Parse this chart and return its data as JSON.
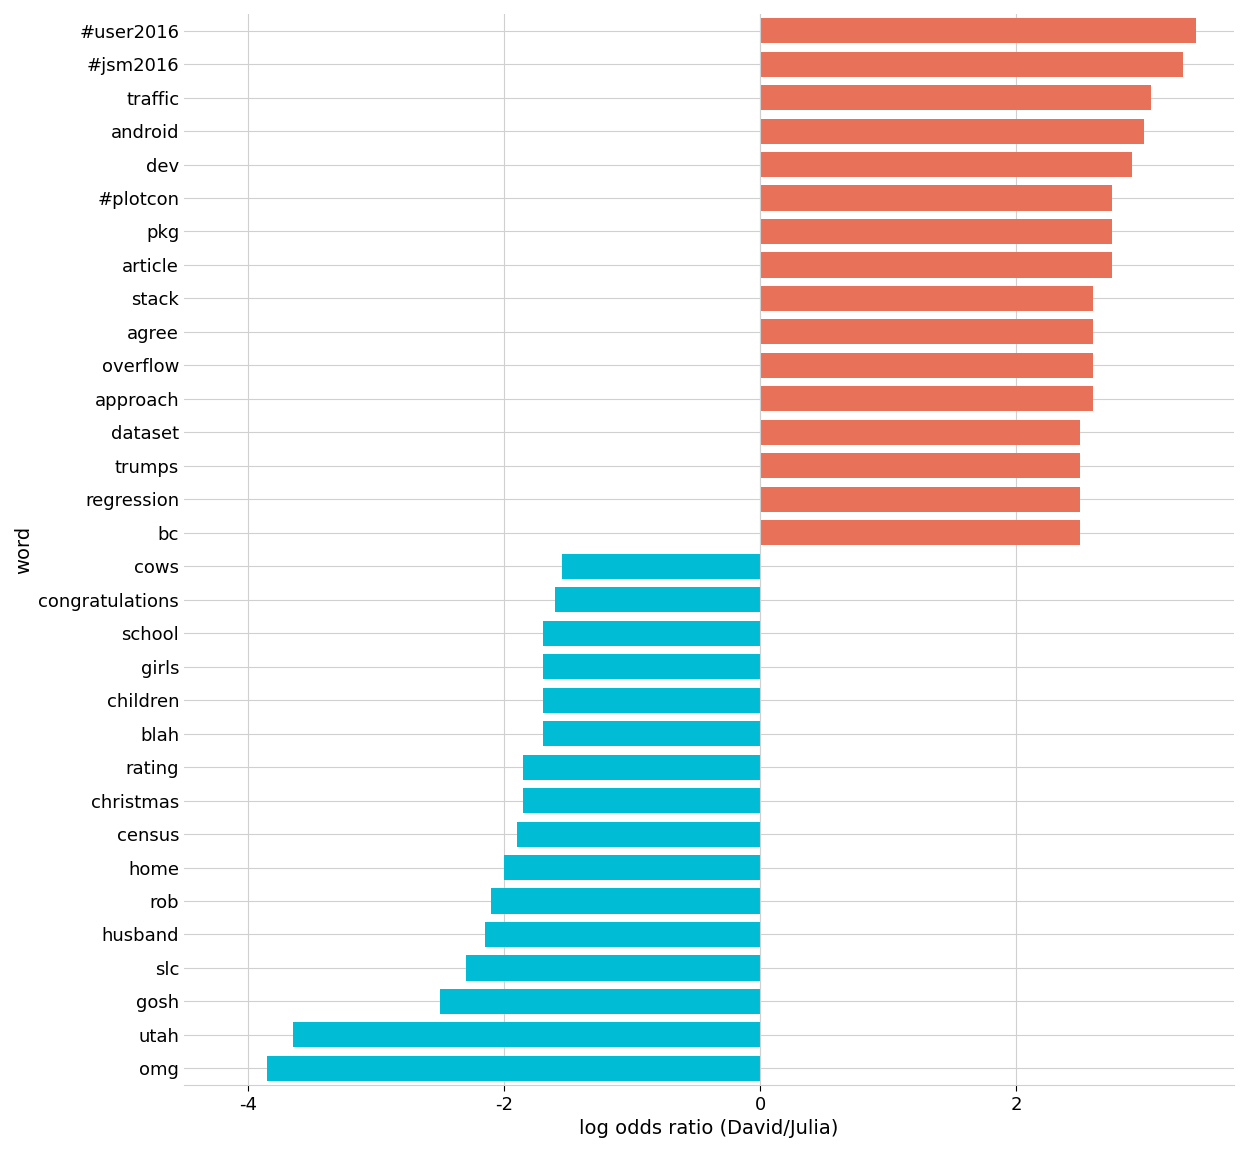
{
  "words": [
    "#user2016",
    "#jsm2016",
    "traffic",
    "android",
    "dev",
    "#plotcon",
    "pkg",
    "article",
    "stack",
    "agree",
    "overflow",
    "approach",
    "dataset",
    "trumps",
    "regression",
    "bc",
    "cows",
    "congratulations",
    "school",
    "girls",
    "children",
    "blah",
    "rating",
    "christmas",
    "census",
    "home",
    "rob",
    "husband",
    "slc",
    "gosh",
    "utah",
    "omg"
  ],
  "values": [
    3.4,
    3.3,
    3.05,
    3.0,
    2.9,
    2.75,
    2.75,
    2.75,
    2.6,
    2.6,
    2.6,
    2.6,
    2.5,
    2.5,
    2.5,
    2.5,
    -1.55,
    -1.6,
    -1.7,
    -1.7,
    -1.7,
    -1.7,
    -1.85,
    -1.85,
    -1.9,
    -2.0,
    -2.1,
    -2.15,
    -2.3,
    -2.5,
    -3.65,
    -3.85
  ],
  "colors": [
    "#E8715A",
    "#E8715A",
    "#E8715A",
    "#E8715A",
    "#E8715A",
    "#E8715A",
    "#E8715A",
    "#E8715A",
    "#E8715A",
    "#E8715A",
    "#E8715A",
    "#E8715A",
    "#E8715A",
    "#E8715A",
    "#E8715A",
    "#E8715A",
    "#00BCD4",
    "#00BCD4",
    "#00BCD4",
    "#00BCD4",
    "#00BCD4",
    "#00BCD4",
    "#00BCD4",
    "#00BCD4",
    "#00BCD4",
    "#00BCD4",
    "#00BCD4",
    "#00BCD4",
    "#00BCD4",
    "#00BCD4",
    "#00BCD4",
    "#00BCD4"
  ],
  "xlabel": "log odds ratio (David/Julia)",
  "ylabel": "word",
  "xlim": [
    -4.5,
    3.7
  ],
  "xticks": [
    -4,
    -2,
    0,
    2
  ],
  "background_color": "#FFFFFF",
  "grid_color": "#D0D0D0",
  "label_fontsize": 14,
  "tick_fontsize": 13
}
